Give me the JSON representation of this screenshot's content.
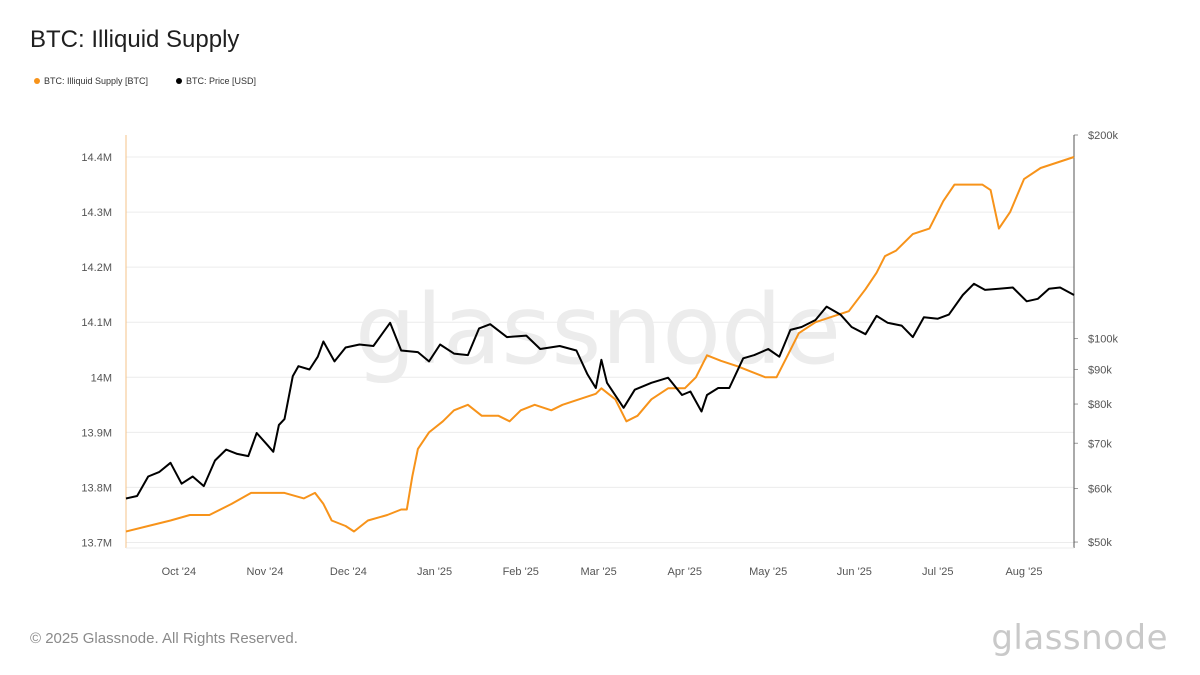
{
  "title": "BTC: Illiquid Supply",
  "footer": "© 2025 Glassnode. All Rights Reserved.",
  "brand": "glassnode",
  "watermark": "glassnode",
  "colors": {
    "supply": "#f7931a",
    "price": "#000000",
    "grid": "#ececec",
    "axis": "#9a9a9a"
  },
  "chart_data": {
    "type": "line",
    "title": "BTC: Illiquid Supply",
    "legend_position": "top-left",
    "grid": true,
    "x_axis": {
      "type": "date",
      "range": [
        "2024-09-12",
        "2025-08-19"
      ],
      "tick_labels": [
        "Oct '24",
        "Nov '24",
        "Dec '24",
        "Jan '25",
        "Feb '25",
        "Mar '25",
        "Apr '25",
        "May '25",
        "Jun '25",
        "Jul '25",
        "Aug '25"
      ],
      "tick_dates": [
        "2024-10-01",
        "2024-11-01",
        "2024-12-01",
        "2025-01-01",
        "2025-02-01",
        "2025-03-01",
        "2025-04-01",
        "2025-05-01",
        "2025-06-01",
        "2025-07-01",
        "2025-08-01"
      ]
    },
    "y_left": {
      "scale": "linear",
      "range": [
        13.69,
        14.44
      ],
      "unit": "M BTC",
      "tick_values": [
        13.7,
        13.8,
        13.9,
        14.0,
        14.1,
        14.2,
        14.3,
        14.4
      ],
      "tick_labels": [
        "13.7M",
        "13.8M",
        "13.9M",
        "14M",
        "14.1M",
        "14.2M",
        "14.3M",
        "14.4M"
      ]
    },
    "y_right": {
      "scale": "log",
      "range": [
        49000,
        200000
      ],
      "unit": "USD",
      "tick_values": [
        50000,
        60000,
        70000,
        80000,
        90000,
        100000,
        200000
      ],
      "tick_labels": [
        "$50k",
        "$60k",
        "$70k",
        "$80k",
        "$90k",
        "$100k",
        "$200k"
      ]
    },
    "series": [
      {
        "name": "BTC: Illiquid Supply [BTC]",
        "axis": "left",
        "color": "#f7931a",
        "points": [
          [
            "2024-09-12",
            13.72
          ],
          [
            "2024-09-20",
            13.73
          ],
          [
            "2024-09-28",
            13.74
          ],
          [
            "2024-10-05",
            13.75
          ],
          [
            "2024-10-12",
            13.75
          ],
          [
            "2024-10-20",
            13.77
          ],
          [
            "2024-10-27",
            13.79
          ],
          [
            "2024-11-01",
            13.79
          ],
          [
            "2024-11-08",
            13.79
          ],
          [
            "2024-11-15",
            13.78
          ],
          [
            "2024-11-19",
            13.79
          ],
          [
            "2024-11-22",
            13.77
          ],
          [
            "2024-11-25",
            13.74
          ],
          [
            "2024-11-30",
            13.73
          ],
          [
            "2024-12-03",
            13.72
          ],
          [
            "2024-12-08",
            13.74
          ],
          [
            "2024-12-15",
            13.75
          ],
          [
            "2024-12-20",
            13.76
          ],
          [
            "2024-12-22",
            13.76
          ],
          [
            "2024-12-24",
            13.82
          ],
          [
            "2024-12-26",
            13.87
          ],
          [
            "2024-12-30",
            13.9
          ],
          [
            "2025-01-04",
            13.92
          ],
          [
            "2025-01-08",
            13.94
          ],
          [
            "2025-01-13",
            13.95
          ],
          [
            "2025-01-18",
            13.93
          ],
          [
            "2025-01-24",
            13.93
          ],
          [
            "2025-01-28",
            13.92
          ],
          [
            "2025-02-01",
            13.94
          ],
          [
            "2025-02-06",
            13.95
          ],
          [
            "2025-02-12",
            13.94
          ],
          [
            "2025-02-16",
            13.95
          ],
          [
            "2025-02-22",
            13.96
          ],
          [
            "2025-02-28",
            13.97
          ],
          [
            "2025-03-02",
            13.98
          ],
          [
            "2025-03-07",
            13.96
          ],
          [
            "2025-03-11",
            13.92
          ],
          [
            "2025-03-15",
            13.93
          ],
          [
            "2025-03-20",
            13.96
          ],
          [
            "2025-03-26",
            13.98
          ],
          [
            "2025-04-01",
            13.98
          ],
          [
            "2025-04-05",
            14.0
          ],
          [
            "2025-04-09",
            14.04
          ],
          [
            "2025-04-14",
            14.03
          ],
          [
            "2025-04-20",
            14.02
          ],
          [
            "2025-04-25",
            14.01
          ],
          [
            "2025-04-30",
            14.0
          ],
          [
            "2025-05-04",
            14.0
          ],
          [
            "2025-05-08",
            14.04
          ],
          [
            "2025-05-12",
            14.08
          ],
          [
            "2025-05-18",
            14.1
          ],
          [
            "2025-05-24",
            14.11
          ],
          [
            "2025-05-30",
            14.12
          ],
          [
            "2025-06-05",
            14.16
          ],
          [
            "2025-06-09",
            14.19
          ],
          [
            "2025-06-12",
            14.22
          ],
          [
            "2025-06-16",
            14.23
          ],
          [
            "2025-06-22",
            14.26
          ],
          [
            "2025-06-28",
            14.27
          ],
          [
            "2025-07-03",
            14.32
          ],
          [
            "2025-07-07",
            14.35
          ],
          [
            "2025-07-12",
            14.35
          ],
          [
            "2025-07-17",
            14.35
          ],
          [
            "2025-07-20",
            14.34
          ],
          [
            "2025-07-23",
            14.27
          ],
          [
            "2025-07-27",
            14.3
          ],
          [
            "2025-08-01",
            14.36
          ],
          [
            "2025-08-07",
            14.38
          ],
          [
            "2025-08-13",
            14.39
          ],
          [
            "2025-08-19",
            14.4
          ]
        ]
      },
      {
        "name": "BTC: Price [USD]",
        "axis": "right",
        "color": "#000000",
        "points": [
          [
            "2024-09-12",
            58000
          ],
          [
            "2024-09-16",
            58500
          ],
          [
            "2024-09-20",
            62500
          ],
          [
            "2024-09-24",
            63500
          ],
          [
            "2024-09-28",
            65500
          ],
          [
            "2024-10-02",
            61000
          ],
          [
            "2024-10-06",
            62500
          ],
          [
            "2024-10-10",
            60500
          ],
          [
            "2024-10-14",
            66000
          ],
          [
            "2024-10-18",
            68500
          ],
          [
            "2024-10-22",
            67500
          ],
          [
            "2024-10-26",
            67000
          ],
          [
            "2024-10-29",
            72500
          ],
          [
            "2024-11-02",
            69500
          ],
          [
            "2024-11-04",
            68000
          ],
          [
            "2024-11-06",
            74500
          ],
          [
            "2024-11-08",
            76000
          ],
          [
            "2024-11-11",
            88000
          ],
          [
            "2024-11-13",
            91000
          ],
          [
            "2024-11-17",
            90000
          ],
          [
            "2024-11-20",
            94000
          ],
          [
            "2024-11-22",
            99000
          ],
          [
            "2024-11-26",
            92500
          ],
          [
            "2024-11-30",
            97000
          ],
          [
            "2024-12-05",
            98000
          ],
          [
            "2024-12-10",
            97500
          ],
          [
            "2024-12-16",
            105500
          ],
          [
            "2024-12-20",
            96000
          ],
          [
            "2024-12-26",
            95500
          ],
          [
            "2024-12-30",
            92500
          ],
          [
            "2025-01-03",
            98000
          ],
          [
            "2025-01-08",
            95000
          ],
          [
            "2025-01-13",
            94500
          ],
          [
            "2025-01-17",
            103500
          ],
          [
            "2025-01-21",
            105000
          ],
          [
            "2025-01-27",
            100500
          ],
          [
            "2025-02-03",
            101000
          ],
          [
            "2025-02-08",
            96500
          ],
          [
            "2025-02-15",
            97500
          ],
          [
            "2025-02-21",
            96000
          ],
          [
            "2025-02-25",
            88500
          ],
          [
            "2025-02-28",
            84500
          ],
          [
            "2025-03-02",
            93000
          ],
          [
            "2025-03-04",
            86000
          ],
          [
            "2025-03-10",
            79000
          ],
          [
            "2025-03-14",
            84000
          ],
          [
            "2025-03-20",
            86000
          ],
          [
            "2025-03-26",
            87500
          ],
          [
            "2025-03-31",
            82500
          ],
          [
            "2025-04-03",
            83500
          ],
          [
            "2025-04-07",
            78000
          ],
          [
            "2025-04-09",
            82500
          ],
          [
            "2025-04-13",
            84500
          ],
          [
            "2025-04-17",
            84500
          ],
          [
            "2025-04-22",
            93500
          ],
          [
            "2025-04-26",
            94500
          ],
          [
            "2025-05-01",
            96500
          ],
          [
            "2025-05-05",
            94000
          ],
          [
            "2025-05-09",
            103000
          ],
          [
            "2025-05-13",
            104000
          ],
          [
            "2025-05-18",
            106500
          ],
          [
            "2025-05-22",
            111500
          ],
          [
            "2025-05-27",
            108500
          ],
          [
            "2025-05-31",
            104000
          ],
          [
            "2025-06-05",
            101500
          ],
          [
            "2025-06-09",
            108000
          ],
          [
            "2025-06-13",
            105500
          ],
          [
            "2025-06-18",
            104500
          ],
          [
            "2025-06-22",
            100500
          ],
          [
            "2025-06-26",
            107500
          ],
          [
            "2025-07-01",
            107000
          ],
          [
            "2025-07-05",
            108500
          ],
          [
            "2025-07-10",
            116000
          ],
          [
            "2025-07-14",
            120500
          ],
          [
            "2025-07-18",
            118000
          ],
          [
            "2025-07-23",
            118500
          ],
          [
            "2025-07-28",
            119000
          ],
          [
            "2025-08-02",
            113500
          ],
          [
            "2025-08-06",
            114500
          ],
          [
            "2025-08-10",
            118500
          ],
          [
            "2025-08-14",
            119000
          ],
          [
            "2025-08-19",
            116000
          ]
        ]
      }
    ]
  }
}
